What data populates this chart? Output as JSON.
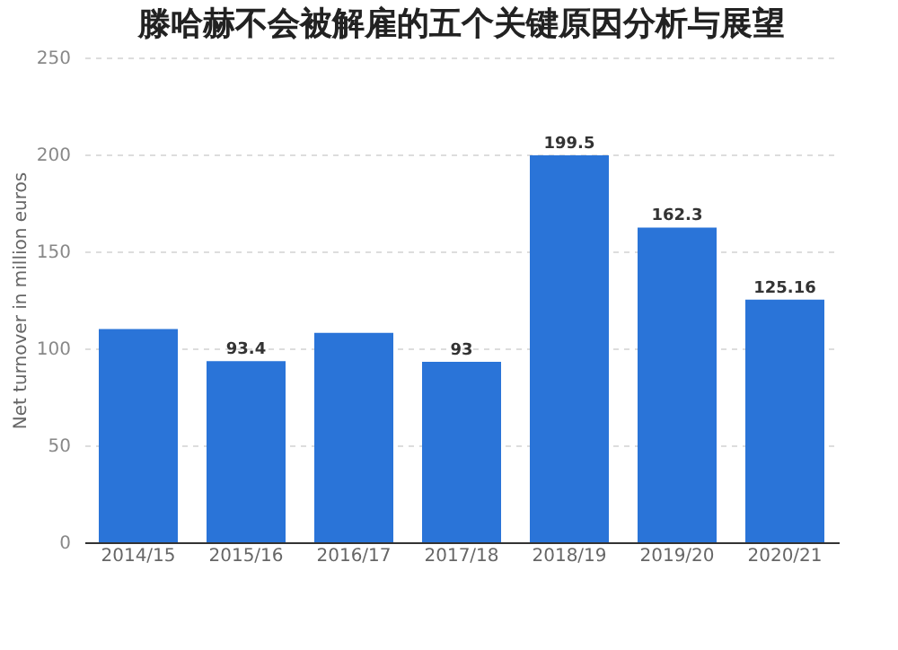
{
  "chart_data": {
    "type": "bar",
    "title": "滕哈赫不会被解雇的五个关键原因分析与展望",
    "ylabel": "Net turnover in million euros",
    "categories": [
      "2014/15",
      "2015/16",
      "2016/17",
      "2017/18",
      "2018/19",
      "2019/20",
      "2020/21"
    ],
    "values": [
      110,
      93.4,
      108,
      93,
      199.5,
      162.3,
      125.16
    ],
    "value_labels": [
      null,
      "93.4",
      null,
      "93",
      "199.5",
      "162.3",
      "125.16"
    ],
    "color": "#2a74d8",
    "ylim": [
      0,
      250
    ],
    "yticks": [
      0,
      50,
      100,
      150,
      200,
      250
    ],
    "grid": "y"
  }
}
